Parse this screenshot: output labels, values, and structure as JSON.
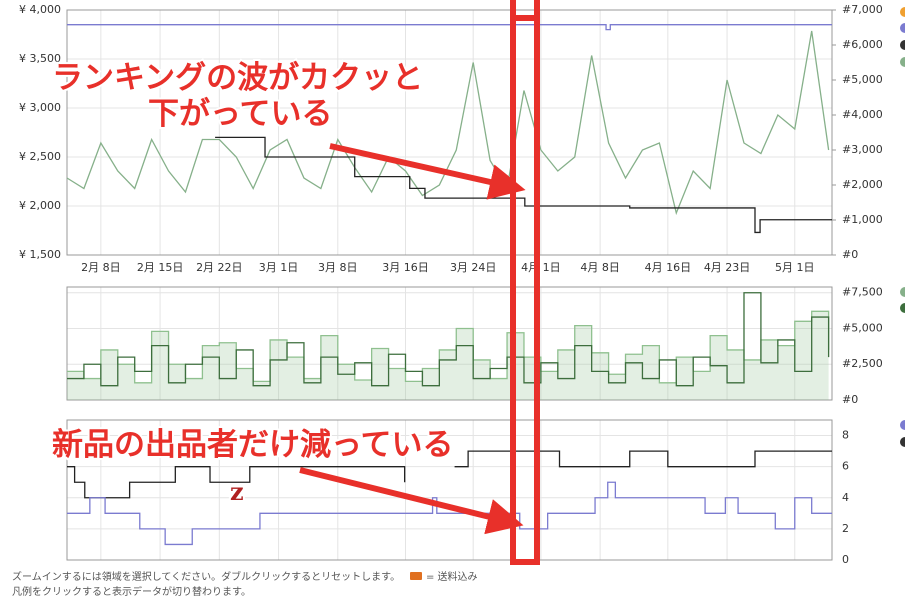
{
  "chart_data": [
    {
      "type": "line",
      "step": true,
      "xlim": [
        35,
        125.4
      ],
      "xticks": [
        {
          "value": 39,
          "label": "2月 8日"
        },
        {
          "value": 46,
          "label": "2月 15日"
        },
        {
          "value": 53,
          "label": "2月 22日"
        },
        {
          "value": 60,
          "label": "3月 1日"
        },
        {
          "value": 67,
          "label": "3月 8日"
        },
        {
          "value": 75,
          "label": "3月 16日"
        },
        {
          "value": 83,
          "label": "3月 24日"
        },
        {
          "value": 91,
          "label": "4月 1日"
        },
        {
          "value": 98,
          "label": "4月 8日"
        },
        {
          "value": 106,
          "label": "4月 16日"
        },
        {
          "value": 113,
          "label": "4月 23日"
        },
        {
          "value": 121,
          "label": "5月 1日"
        }
      ],
      "ylim": [
        1500,
        4000
      ],
      "yticks": [
        {
          "value": 1500,
          "label": "¥ 1,500"
        },
        {
          "value": 2000,
          "label": "¥ 2,000"
        },
        {
          "value": 2500,
          "label": "¥ 2,500"
        },
        {
          "value": 3000,
          "label": "¥ 3,000"
        },
        {
          "value": 3500,
          "label": "¥ 3,500"
        },
        {
          "value": 4000,
          "label": "¥ 4,000"
        }
      ],
      "y2lim": [
        0,
        7000
      ],
      "y2ticks": [
        {
          "value": 0,
          "label": "#0"
        },
        {
          "value": 1000,
          "label": "#1,000"
        },
        {
          "value": 2000,
          "label": "#2,000"
        },
        {
          "value": 3000,
          "label": "#3,000"
        },
        {
          "value": 4000,
          "label": "#4,000"
        },
        {
          "value": 5000,
          "label": "#5,000"
        },
        {
          "value": 6000,
          "label": "#6,000"
        },
        {
          "value": 7000,
          "label": "#7,000"
        }
      ],
      "grid": true,
      "series": [
        {
          "color": "#86b08a",
          "axis": "y2",
          "step": false,
          "x": [
            35,
            37,
            39,
            41,
            43,
            45,
            47,
            49,
            51,
            53,
            55,
            57,
            59,
            61,
            63,
            65,
            67,
            69,
            71,
            73,
            75,
            77,
            79,
            81,
            83,
            85,
            87,
            89,
            91,
            93,
            95,
            97,
            99,
            101,
            103,
            105,
            107,
            109,
            111,
            113,
            115,
            117,
            119,
            121,
            123,
            125
          ],
          "values": [
            2200,
            1900,
            3200,
            2400,
            1900,
            3300,
            2400,
            1800,
            3300,
            3300,
            2800,
            1900,
            3000,
            3300,
            2200,
            1900,
            3300,
            2500,
            1800,
            2800,
            2400,
            1700,
            2000,
            3000,
            5500,
            2700,
            1900,
            4700,
            3000,
            2400,
            2800,
            5700,
            3200,
            2200,
            3000,
            3200,
            1200,
            2400,
            1900,
            5000,
            3200,
            2900,
            4000,
            3600,
            6400,
            3000
          ]
        },
        {
          "color": "#222222",
          "x": [
            52.5,
            58.4,
            69,
            75.5,
            77.3,
            89.1,
            101.5,
            116.3,
            116.9,
            125.4
          ],
          "values": [
            2700,
            2500,
            2300,
            2180,
            2080,
            2000,
            1980,
            1730,
            1860,
            1860
          ]
        },
        {
          "color": "#7b7bd0",
          "x": [
            35,
            98.7,
            99.2,
            125.4
          ],
          "values": [
            3850,
            3800,
            3850,
            3850
          ]
        }
      ]
    },
    {
      "type": "line",
      "step": true,
      "ylim": [
        0,
        7900
      ],
      "ytick_side": "right",
      "yticks": [
        {
          "value": 0,
          "label": "#0"
        },
        {
          "value": 2500,
          "label": "#2,500"
        },
        {
          "value": 5000,
          "label": "#5,000"
        },
        {
          "value": 7500,
          "label": "#7,500"
        }
      ],
      "x": [
        35,
        37,
        39,
        41,
        43,
        45,
        47,
        49,
        51,
        53,
        55,
        57,
        59,
        61,
        63,
        65,
        67,
        69,
        71,
        73,
        75,
        77,
        79,
        81,
        83,
        85,
        87,
        89,
        91,
        93,
        95,
        97,
        99,
        101,
        103,
        105,
        107,
        109,
        111,
        113,
        115,
        117,
        119,
        121,
        123,
        125
      ],
      "series": [
        {
          "color": "#8fc08f",
          "area": true,
          "values": [
            2000,
            1500,
            3500,
            2500,
            1200,
            4800,
            2500,
            1500,
            3800,
            4000,
            2200,
            1300,
            4200,
            3000,
            1500,
            4500,
            2500,
            1400,
            3600,
            2200,
            1300,
            2200,
            3500,
            5000,
            2800,
            1500,
            4700,
            3000,
            2000,
            3500,
            5200,
            3300,
            1800,
            3200,
            3800,
            1200,
            3000,
            2000,
            4500,
            3500,
            2800,
            4200,
            3800,
            5500,
            6200,
            3500
          ]
        },
        {
          "color": "#3d6e3d",
          "values": [
            1500,
            2500,
            1000,
            3000,
            2000,
            3800,
            1200,
            2500,
            3000,
            1500,
            3500,
            1000,
            2800,
            4000,
            1200,
            3000,
            1800,
            2600,
            1000,
            3200,
            2000,
            1000,
            2800,
            3800,
            1500,
            2200,
            3000,
            1200,
            2600,
            1500,
            3800,
            2000,
            1200,
            2600,
            1500,
            2800,
            1000,
            3000,
            2400,
            1200,
            7500,
            2600,
            4200,
            2000,
            5800,
            3000
          ]
        }
      ]
    },
    {
      "type": "line",
      "step": true,
      "ylim": [
        0,
        9
      ],
      "ytick_side": "right",
      "yticks": [
        0,
        2,
        4,
        6,
        8
      ],
      "series": [
        {
          "color": "#222222",
          "x": [
            35,
            35.9,
            37.1,
            42.4,
            47.8,
            51.9,
            56.6,
            74.9,
            75.5,
            80.8,
            82.4,
            93.2,
            101.5,
            106,
            116.3,
            125.4
          ],
          "values": [
            6,
            5,
            4,
            5,
            6,
            5,
            6,
            5,
            null,
            6,
            7,
            6,
            7,
            6,
            7,
            7
          ]
        },
        {
          "color": "#7b7bd0",
          "x": [
            35,
            37.7,
            39.5,
            43.6,
            46.6,
            49.8,
            57.8,
            78.2,
            78.7,
            88.5,
            91.8,
            97.4,
            98.9,
            99.8,
            110.4,
            112.8,
            114.3,
            118.7,
            121,
            123,
            125.4
          ],
          "values": [
            3,
            4,
            3,
            2,
            1,
            2,
            3,
            4,
            3,
            2,
            3,
            4,
            5,
            4,
            3,
            4,
            3,
            2,
            4,
            3,
            3
          ]
        }
      ]
    }
  ],
  "annotations": {
    "rank_line1": "ランキングの波がカクッと",
    "rank_line2": "下がっている",
    "sellers": "新品の出品者だけ減っている",
    "z": "z"
  },
  "footer": {
    "zoom": "ズームインするには領域を選択してください。ダブルクリックするとリセットします。",
    "shipping": "= 送料込み",
    "legend": "凡例をクリックすると表示データが切り替わります。"
  }
}
